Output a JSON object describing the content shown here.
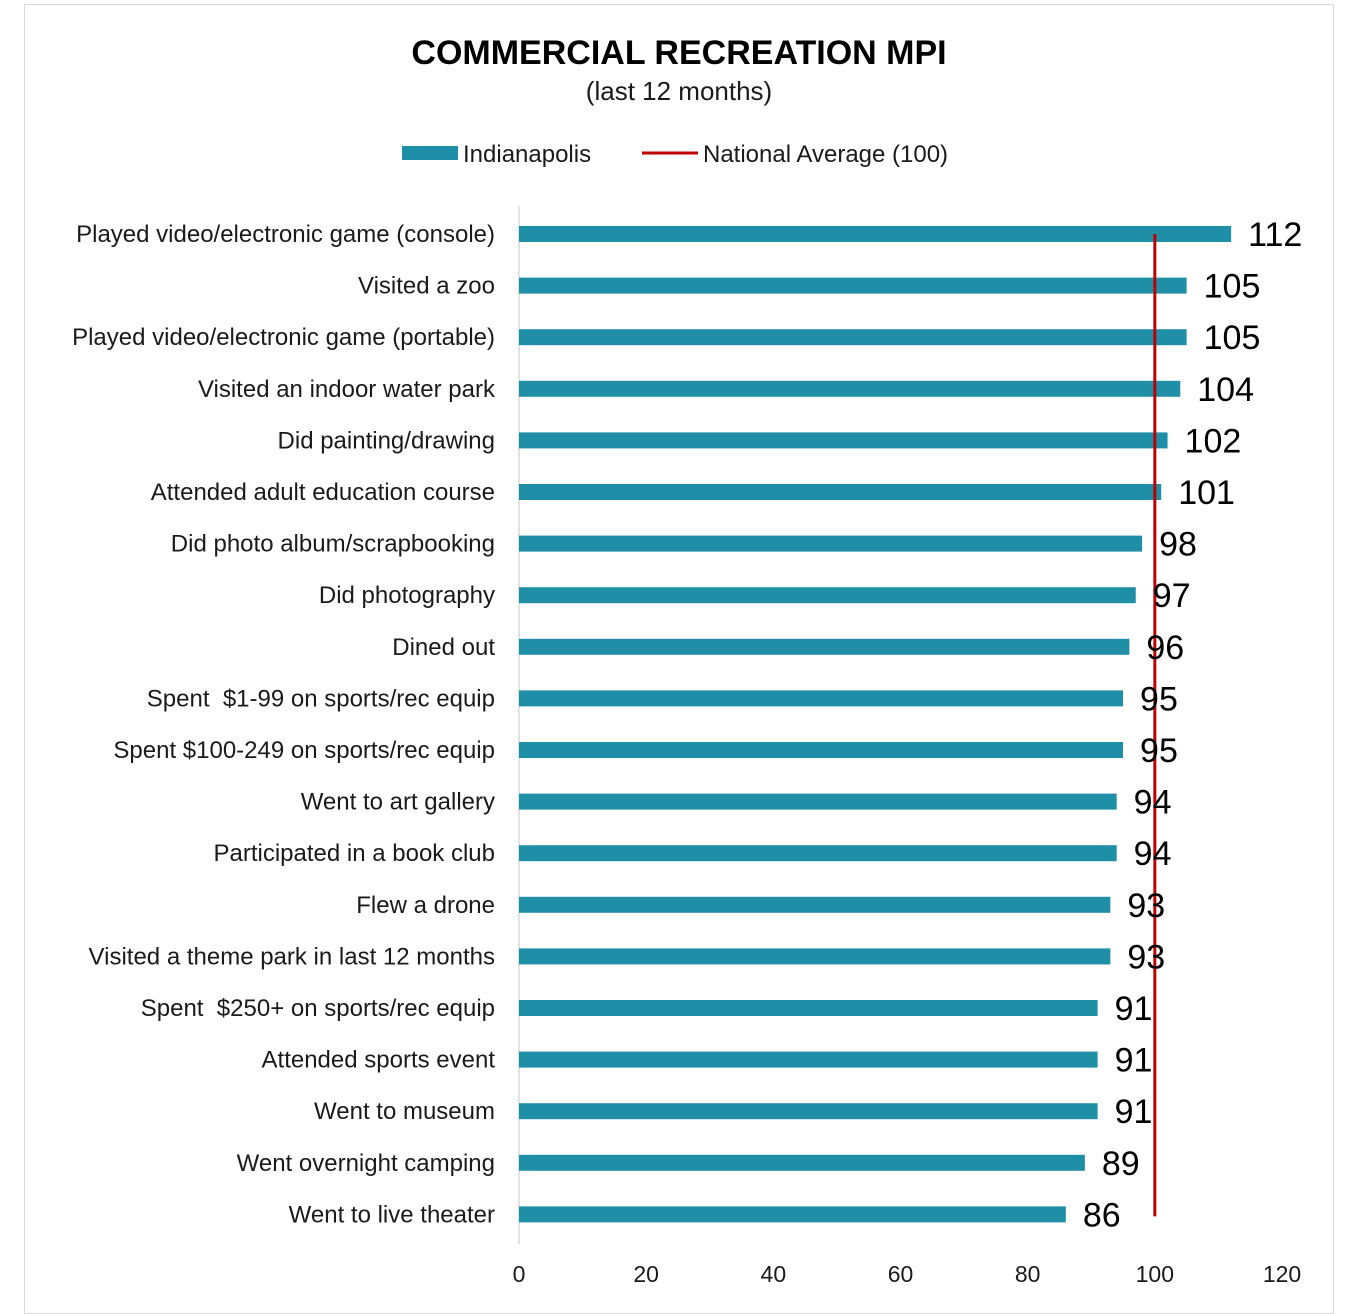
{
  "chart_data": {
    "type": "bar",
    "orientation": "horizontal",
    "title": "COMMERCIAL RECREATION MPI",
    "subtitle": "(last 12 months)",
    "legend": {
      "placement": "top",
      "entries": [
        {
          "label": "Indianapolis",
          "kind": "bar",
          "color": "#1f8fa8"
        },
        {
          "label": "National Average (100)",
          "kind": "line",
          "color": "#c00000"
        }
      ]
    },
    "categories": [
      "Played video/electronic game (console)",
      "Visited a zoo",
      "Played video/electronic game (portable)",
      "Visited an indoor water park",
      "Did painting/drawing",
      "Attended adult education course",
      "Did photo album/scrapbooking",
      "Did photography",
      "Dined out",
      "Spent  $1-99 on sports/rec equip",
      "Spent $100-249 on sports/rec equip",
      "Went to art gallery",
      "Participated in a book club",
      "Flew a drone",
      "Visited a theme park in last 12 months",
      "Spent  $250+ on sports/rec equip",
      "Attended sports event",
      "Went to museum",
      "Went overnight camping",
      "Went to live theater"
    ],
    "series": [
      {
        "name": "Indianapolis",
        "color": "#1f8fa8",
        "values": [
          112,
          105,
          105,
          104,
          102,
          101,
          98,
          97,
          96,
          95,
          95,
          94,
          94,
          93,
          93,
          91,
          91,
          91,
          89,
          86
        ]
      }
    ],
    "reference_line": {
      "name": "National Average (100)",
      "value": 100,
      "color": "#c00000"
    },
    "xlim": [
      0,
      120
    ],
    "xticks": [
      0,
      20,
      40,
      60,
      80,
      100,
      120
    ],
    "grid": false,
    "data_labels": true
  }
}
